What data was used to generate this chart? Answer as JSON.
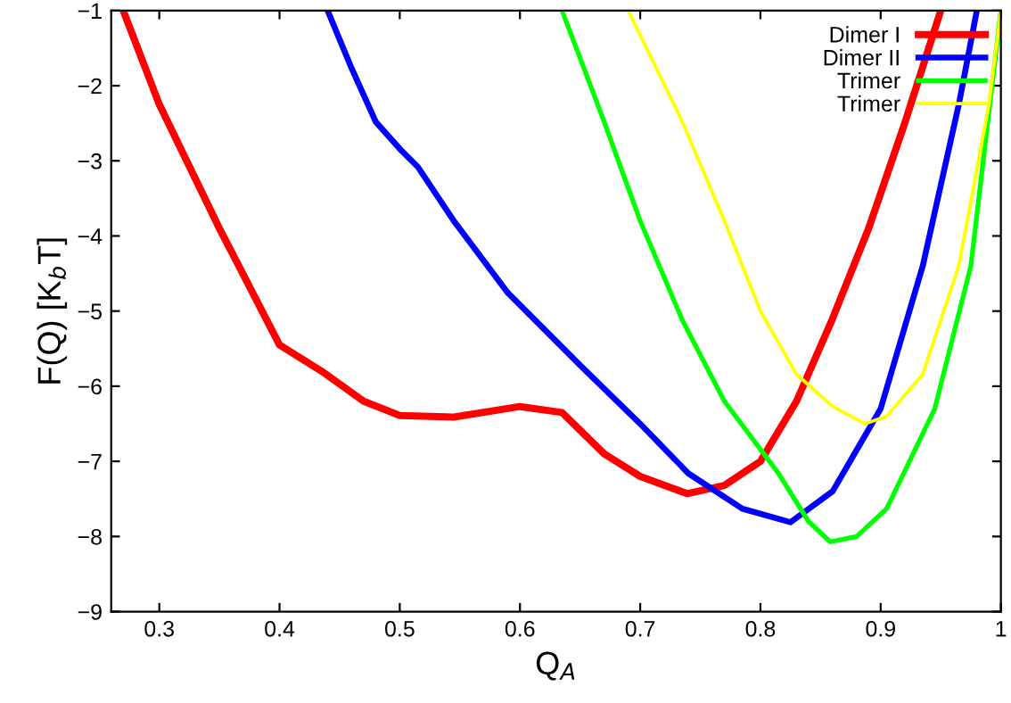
{
  "chart_data": {
    "type": "line",
    "xlabel": "Q$_{A}$",
    "ylabel": "F(Q) [K$_{b}$T]",
    "xlim": [
      0.26,
      1
    ],
    "ylim": [
      -9,
      -1
    ],
    "xticks": [
      0.3,
      0.4,
      0.5,
      0.6,
      0.7,
      0.8,
      0.9,
      1
    ],
    "yticks": [
      -9,
      -8,
      -7,
      -6,
      -5,
      -4,
      -3,
      -2,
      -1
    ],
    "grid": false,
    "legend": "top right",
    "marker": "none",
    "line_style": "solid",
    "series": [
      {
        "name": "Dimer I",
        "color": "#ff0000",
        "x": [
          0.27,
          0.3,
          0.35,
          0.4,
          0.435,
          0.47,
          0.5,
          0.545,
          0.6,
          0.635,
          0.67,
          0.7,
          0.739,
          0.77,
          0.8,
          0.83,
          0.86,
          0.89,
          0.92,
          0.95
        ],
        "values": [
          -1,
          -2.25,
          -3.9,
          -5.45,
          -5.8,
          -6.2,
          -6.39,
          -6.41,
          -6.27,
          -6.35,
          -6.9,
          -7.2,
          -7.43,
          -7.32,
          -7.0,
          -6.2,
          -5.1,
          -3.9,
          -2.5,
          -1
        ]
      },
      {
        "name": "Dimer II",
        "color": "#0000ff",
        "x": [
          0.44,
          0.46,
          0.48,
          0.5,
          0.515,
          0.545,
          0.59,
          0.65,
          0.7,
          0.74,
          0.785,
          0.825,
          0.86,
          0.9,
          0.935,
          0.965,
          0.98
        ],
        "values": [
          -1,
          -1.77,
          -2.48,
          -2.84,
          -3.08,
          -3.8,
          -4.76,
          -5.72,
          -6.5,
          -7.16,
          -7.63,
          -7.81,
          -7.4,
          -6.3,
          -4.4,
          -2.25,
          -1
        ]
      },
      {
        "name": "Trimer",
        "color": "#00ff00",
        "x": [
          0.635,
          0.67,
          0.7,
          0.735,
          0.77,
          0.815,
          0.84,
          0.858,
          0.88,
          0.905,
          0.945,
          0.975,
          1.0
        ],
        "values": [
          -1,
          -2.48,
          -3.8,
          -5.12,
          -6.2,
          -7.16,
          -7.8,
          -8.07,
          -8.0,
          -7.63,
          -6.3,
          -4.4,
          -1
        ]
      },
      {
        "name": "Trimer",
        "color": "#ffff00",
        "x": [
          0.69,
          0.735,
          0.77,
          0.8,
          0.83,
          0.86,
          0.887,
          0.905,
          0.935,
          0.965,
          0.99,
          1.0
        ],
        "values": [
          -1,
          -2.48,
          -3.8,
          -5.0,
          -5.84,
          -6.27,
          -6.5,
          -6.4,
          -5.84,
          -4.4,
          -2.25,
          -1
        ]
      }
    ]
  }
}
